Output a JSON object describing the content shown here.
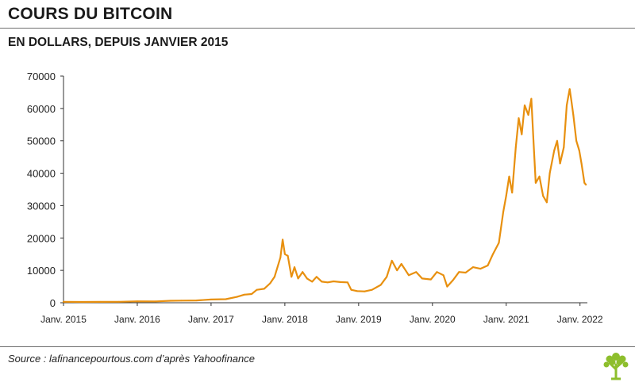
{
  "header": {
    "title": "COURS DU BITCOIN",
    "subtitle": "EN DOLLARS, DEPUIS JANVIER 2015"
  },
  "footer": {
    "source": "Source : lafinancepourtous.com d’après Yahoofinance"
  },
  "colors": {
    "line": "#E8900F",
    "logo": "#8DBE2C",
    "axis": "#333333",
    "rule": "#6E6E6E"
  },
  "icons": {
    "logo": "tree-logo-icon"
  },
  "chart_data": {
    "type": "line",
    "title": "",
    "xlabel": "",
    "ylabel": "",
    "grid": false,
    "legend": "none",
    "ylim": [
      0,
      70000
    ],
    "xlim": [
      2015.0,
      2022.1
    ],
    "y_ticks": [
      0,
      10000,
      20000,
      30000,
      40000,
      50000,
      60000,
      70000
    ],
    "y_tick_labels": [
      "0",
      "10000",
      "20000",
      "30000",
      "40000",
      "50000",
      "60000",
      "70000"
    ],
    "x_ticks": [
      2015,
      2016,
      2017,
      2018,
      2019,
      2020,
      2021,
      2022
    ],
    "x_tick_labels": [
      "Janv. 2015",
      "Janv. 2016",
      "Janv. 2017",
      "Janv. 2018",
      "Janv. 2019",
      "Janv. 2020",
      "Janv. 2021",
      "Janv. 2022"
    ],
    "series": [
      {
        "values": [
          [
            2015.0,
            300
          ],
          [
            2015.25,
            250
          ],
          [
            2015.5,
            280
          ],
          [
            2015.75,
            300
          ],
          [
            2016.0,
            430
          ],
          [
            2016.25,
            420
          ],
          [
            2016.45,
            600
          ],
          [
            2016.6,
            650
          ],
          [
            2016.8,
            700
          ],
          [
            2017.0,
            1000
          ],
          [
            2017.2,
            1100
          ],
          [
            2017.35,
            1800
          ],
          [
            2017.45,
            2500
          ],
          [
            2017.55,
            2700
          ],
          [
            2017.62,
            4000
          ],
          [
            2017.72,
            4300
          ],
          [
            2017.8,
            6000
          ],
          [
            2017.86,
            8000
          ],
          [
            2017.9,
            11000
          ],
          [
            2017.94,
            14000
          ],
          [
            2017.97,
            19500
          ],
          [
            2018.0,
            15000
          ],
          [
            2018.04,
            14500
          ],
          [
            2018.09,
            8000
          ],
          [
            2018.13,
            11000
          ],
          [
            2018.18,
            7500
          ],
          [
            2018.24,
            9500
          ],
          [
            2018.3,
            7500
          ],
          [
            2018.37,
            6500
          ],
          [
            2018.43,
            8000
          ],
          [
            2018.5,
            6500
          ],
          [
            2018.58,
            6300
          ],
          [
            2018.66,
            6600
          ],
          [
            2018.75,
            6400
          ],
          [
            2018.85,
            6300
          ],
          [
            2018.9,
            4000
          ],
          [
            2018.98,
            3600
          ],
          [
            2019.08,
            3500
          ],
          [
            2019.18,
            4000
          ],
          [
            2019.3,
            5500
          ],
          [
            2019.38,
            8000
          ],
          [
            2019.45,
            13000
          ],
          [
            2019.52,
            10000
          ],
          [
            2019.58,
            12000
          ],
          [
            2019.68,
            8500
          ],
          [
            2019.78,
            9500
          ],
          [
            2019.86,
            7500
          ],
          [
            2019.98,
            7200
          ],
          [
            2020.06,
            9500
          ],
          [
            2020.15,
            8500
          ],
          [
            2020.2,
            5000
          ],
          [
            2020.28,
            7000
          ],
          [
            2020.36,
            9500
          ],
          [
            2020.45,
            9300
          ],
          [
            2020.55,
            11000
          ],
          [
            2020.65,
            10500
          ],
          [
            2020.75,
            11500
          ],
          [
            2020.82,
            15000
          ],
          [
            2020.9,
            18500
          ],
          [
            2020.96,
            28000
          ],
          [
            2021.0,
            33000
          ],
          [
            2021.04,
            39000
          ],
          [
            2021.08,
            34000
          ],
          [
            2021.13,
            48000
          ],
          [
            2021.17,
            57000
          ],
          [
            2021.21,
            52000
          ],
          [
            2021.25,
            61000
          ],
          [
            2021.3,
            58000
          ],
          [
            2021.34,
            63000
          ],
          [
            2021.37,
            50000
          ],
          [
            2021.4,
            37000
          ],
          [
            2021.45,
            39000
          ],
          [
            2021.5,
            33000
          ],
          [
            2021.55,
            31000
          ],
          [
            2021.59,
            40000
          ],
          [
            2021.65,
            47000
          ],
          [
            2021.69,
            50000
          ],
          [
            2021.73,
            43000
          ],
          [
            2021.78,
            48000
          ],
          [
            2021.82,
            61000
          ],
          [
            2021.86,
            66000
          ],
          [
            2021.88,
            63000
          ],
          [
            2021.91,
            58000
          ],
          [
            2021.95,
            50000
          ],
          [
            2021.99,
            47000
          ],
          [
            2022.02,
            43000
          ],
          [
            2022.06,
            37000
          ],
          [
            2022.08,
            36500
          ]
        ]
      }
    ]
  }
}
